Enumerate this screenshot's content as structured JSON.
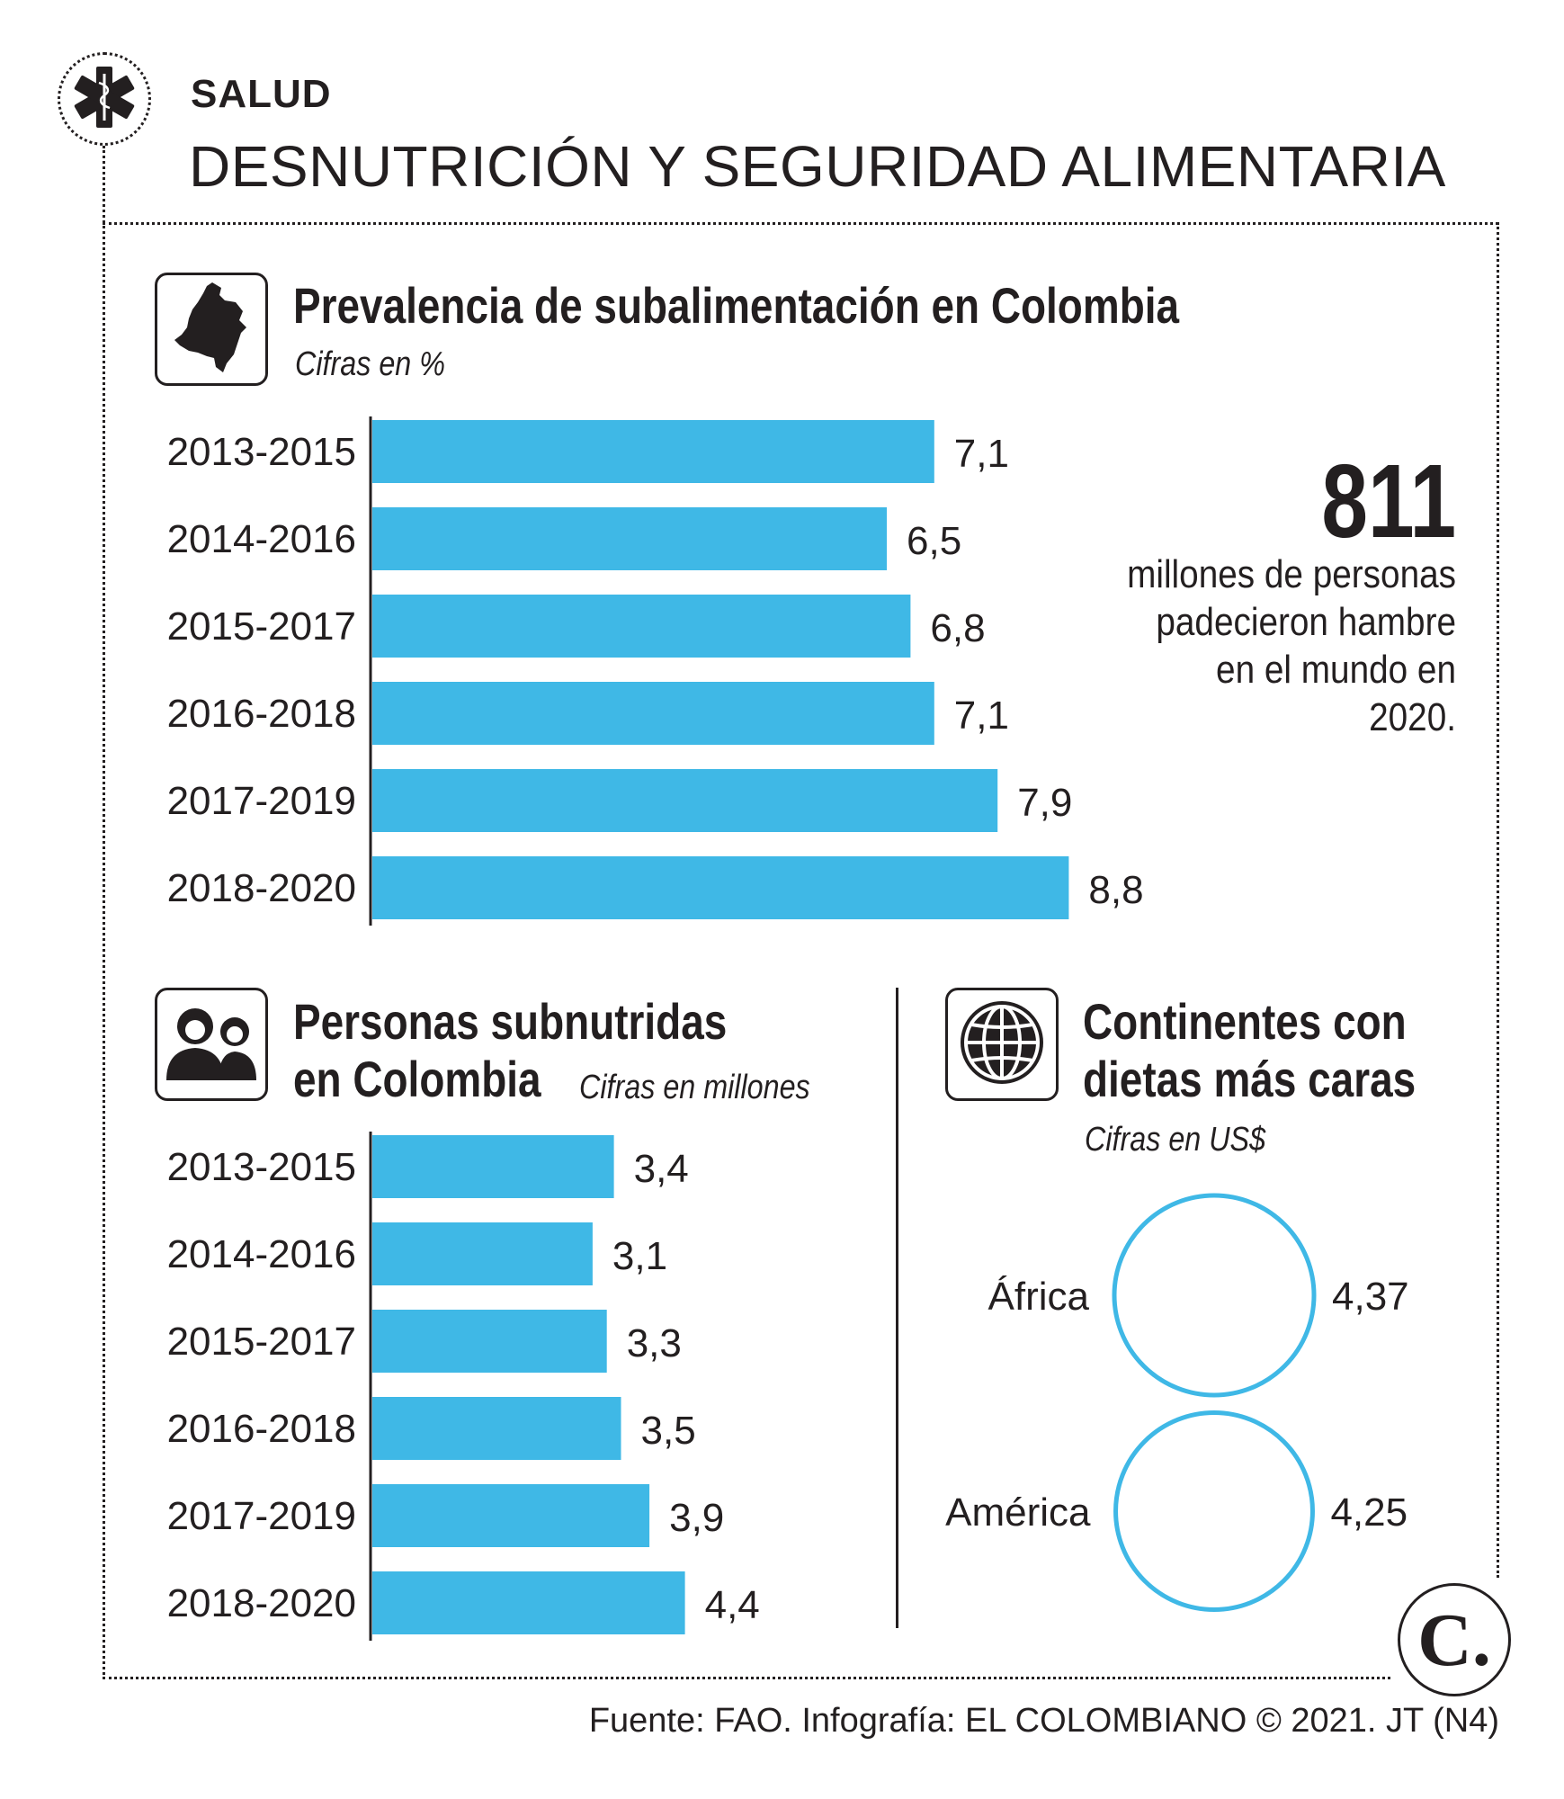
{
  "header": {
    "section": "SALUD",
    "title": "DESNUTRICIÓN Y SEGURIDAD ALIMENTARIA"
  },
  "icons": {
    "section_icon": "star-of-life-icon",
    "chart1_icon": "colombia-map-icon",
    "chart2_icon": "people-icon",
    "chart3_icon": "globe-icon",
    "brand": "el-colombiano-logo-icon"
  },
  "colors": {
    "bar": "#3fb8e6",
    "circle": "#3fb8e6",
    "text": "#231f20"
  },
  "highlight": {
    "number": "811",
    "text": "millones de personas padecieron hambre en el mundo en 2020."
  },
  "chart_data": [
    {
      "type": "bar",
      "orientation": "horizontal",
      "title": "Prevalencia de subalimentación en Colombia",
      "subtitle": "Cifras en %",
      "categories": [
        "2013-2015",
        "2014-2016",
        "2015-2017",
        "2016-2018",
        "2017-2019",
        "2018-2020"
      ],
      "values": [
        7.1,
        6.5,
        6.8,
        7.1,
        7.9,
        8.8
      ],
      "labels": [
        "7,1",
        "6,5",
        "6,8",
        "7,1",
        "7,9",
        "8,8"
      ],
      "grid": false
    },
    {
      "type": "bar",
      "orientation": "horizontal",
      "title": "Personas subnutridas en Colombia",
      "subtitle": "Cifras en millones",
      "categories": [
        "2013-2015",
        "2014-2016",
        "2015-2017",
        "2016-2018",
        "2017-2019",
        "2018-2020"
      ],
      "values": [
        3.4,
        3.1,
        3.3,
        3.5,
        3.9,
        4.4
      ],
      "labels": [
        "3,4",
        "3,1",
        "3,3",
        "3,5",
        "3,9",
        "4,4"
      ],
      "grid": false
    },
    {
      "type": "bubble",
      "title": "Continentes con dietas más caras",
      "subtitle": "Cifras en US$",
      "categories": [
        "África",
        "América"
      ],
      "values": [
        4.37,
        4.25
      ],
      "labels": [
        "4,37",
        "4,25"
      ]
    }
  ],
  "footer": {
    "source": "Fuente: FAO. Infografía: EL COLOMBIANO © 2021. JT (N4)",
    "brand_letter": "C."
  }
}
